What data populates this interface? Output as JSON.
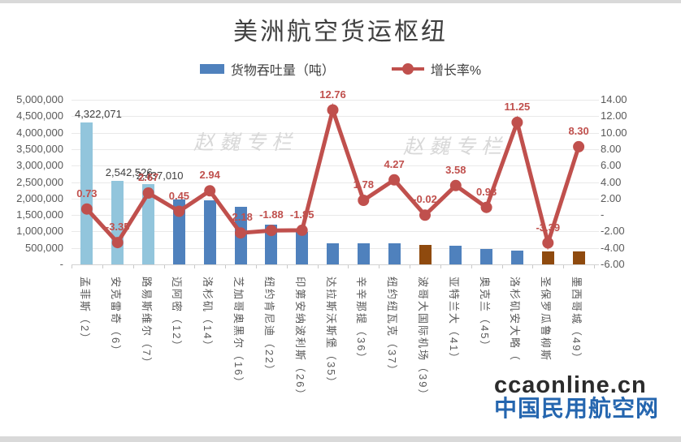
{
  "title": "美洲航空货运枢纽",
  "legend": {
    "bar_label": "货物吞吐量（吨）",
    "line_label": "增长率%"
  },
  "watermarks": {
    "column": "赵巍专栏",
    "site_line1": "ccaonline.cn",
    "site_line2": "中国民用航空网"
  },
  "colors": {
    "bar_light_blue": "#92C5DC",
    "bar_steel_blue": "#4F81BD",
    "bar_brown": "#8F4A0E",
    "line_red": "#C0504D",
    "grid": "#E9E9E9",
    "axis_text": "#595959",
    "bar_label_text": "#404040"
  },
  "chart_data": {
    "type": "bar",
    "subtype": "bar+line combo, dual axis",
    "title": "美洲航空货运枢纽",
    "grid": true,
    "legend_position": "top",
    "categories": [
      "孟菲斯（2）",
      "安克雷奇（6）",
      "路易斯维尔（7）",
      "迈阿密（12）",
      "洛杉矶（14）",
      "芝加哥奥黑尔（16）",
      "纽约肯尼迪（22）",
      "印第安纳波利斯（26）",
      "达拉斯沃斯堡（35）",
      "辛辛那提（36）",
      "纽约纽瓦克（37）",
      "波哥大国际机场（39）",
      "亚特兰大（41）",
      "奥克兰（45）",
      "洛杉矶安大略（",
      "圣保罗瓜鲁柳斯",
      "墨西哥城（49）"
    ],
    "series": [
      {
        "name": "货物吞吐量（吨）",
        "type": "bar",
        "axis": "left",
        "values": [
          4322071,
          2542526,
          2437010,
          1980000,
          1940000,
          1750000,
          1210000,
          990000,
          650000,
          650000,
          630000,
          590000,
          570000,
          460000,
          420000,
          400000,
          400000
        ],
        "shown_labels": [
          "4,322,071",
          "2,542,526",
          "2,437,010",
          null,
          null,
          null,
          null,
          null,
          null,
          null,
          null,
          null,
          null,
          null,
          null,
          null,
          null
        ],
        "colors": [
          "#92C5DC",
          "#92C5DC",
          "#92C5DC",
          "#4F81BD",
          "#4F81BD",
          "#4F81BD",
          "#4F81BD",
          "#4F81BD",
          "#4F81BD",
          "#4F81BD",
          "#4F81BD",
          "#8F4A0E",
          "#4F81BD",
          "#4F81BD",
          "#4F81BD",
          "#8F4A0E",
          "#8F4A0E"
        ]
      },
      {
        "name": "增长率%",
        "type": "line",
        "axis": "right",
        "color": "#C0504D",
        "values": [
          0.73,
          -3.35,
          2.67,
          0.45,
          2.94,
          -2.18,
          -1.88,
          -1.85,
          12.76,
          1.78,
          4.27,
          -0.02,
          3.58,
          0.93,
          11.25,
          -3.39,
          8.3
        ],
        "labels": [
          "0.73",
          "-3.35",
          "2.67",
          "0.45",
          "2.94",
          "-2.18",
          "-1.88",
          "-1.85",
          "12.76",
          "1.78",
          "4.27",
          "-0.02",
          "3.58",
          "0.93",
          "11.25",
          "-3.39",
          "8.30"
        ]
      }
    ],
    "left_axis": {
      "min": 0,
      "max": 5000000,
      "tick_labels_top_to_bottom": [
        "5,000,000",
        "4,500,000",
        "4,000,000",
        "3,500,000",
        "3,000,000",
        "2,500,000",
        "2,000,000",
        "1,500,000",
        "1,000,000",
        "500,000",
        "-"
      ]
    },
    "right_axis": {
      "min": -6,
      "max": 14,
      "tick_labels_top_to_bottom": [
        "14.00",
        "12.00",
        "10.00",
        "8.00",
        "6.00",
        "4.00",
        "2.00",
        "-",
        "-2.00",
        "-4.00",
        "-6.00"
      ]
    }
  }
}
